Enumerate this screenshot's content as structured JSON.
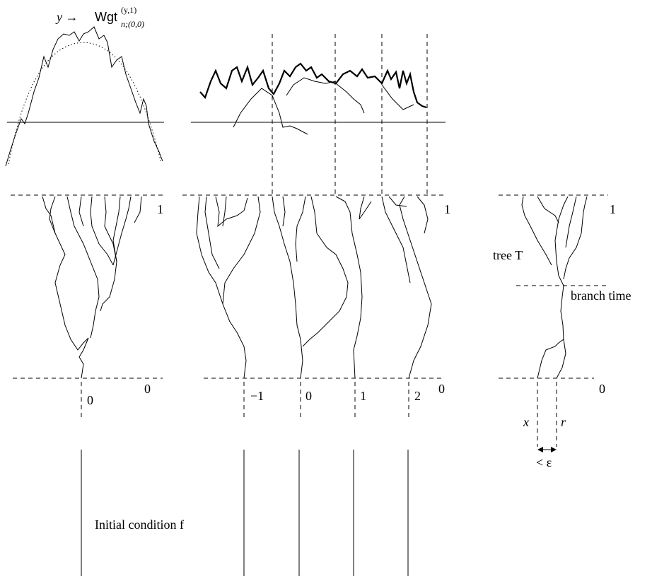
{
  "panel_left": {
    "formula": {
      "arg": "y →",
      "name": "Wgt",
      "sup": "(y,1)",
      "sub": "n;(0,0)"
    },
    "top_label": "1",
    "bottom_label": "0",
    "origin_label": "0"
  },
  "panel_middle": {
    "top_label": "1",
    "bottom_label": "0",
    "position_labels": [
      "−1",
      "0",
      "1",
      "2"
    ]
  },
  "panel_right": {
    "tree_label": "tree T",
    "branch_label": "branch time",
    "top_label": "1",
    "bottom_label": "0",
    "x_label": "x",
    "r_label": "r",
    "gap_label": "< ε"
  },
  "initial_condition": "Initial condition f"
}
